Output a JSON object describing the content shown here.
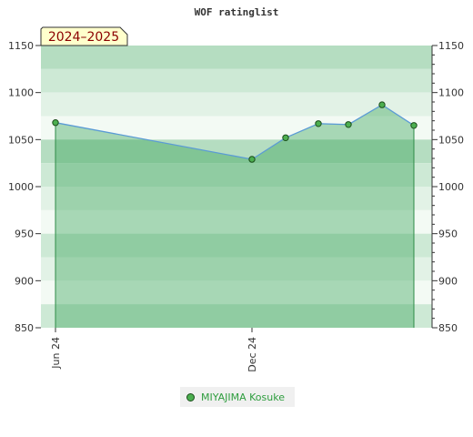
{
  "chart_data": {
    "type": "area",
    "title": "WOF ratinglist",
    "season_label": "2024–2025",
    "ylim": [
      850,
      1150
    ],
    "y_ticks": [
      850,
      900,
      950,
      1000,
      1050,
      1100,
      1150
    ],
    "x_tick_labels": [
      "Jun 24",
      "Dec 24"
    ],
    "series": [
      {
        "name": "MIYAJIMA Kosuke",
        "values": [
          1068,
          1029,
          1052,
          1067,
          1066,
          1087,
          1065
        ]
      }
    ],
    "band_colors": [
      "#98cfa5",
      "#8ccb9b",
      "#7fc593",
      "#95cea3",
      "#88c99a",
      "#7bc28f"
    ],
    "line_color": "#5b9bd5",
    "marker_color": "#4caf50",
    "legend_placement": "bottom"
  }
}
